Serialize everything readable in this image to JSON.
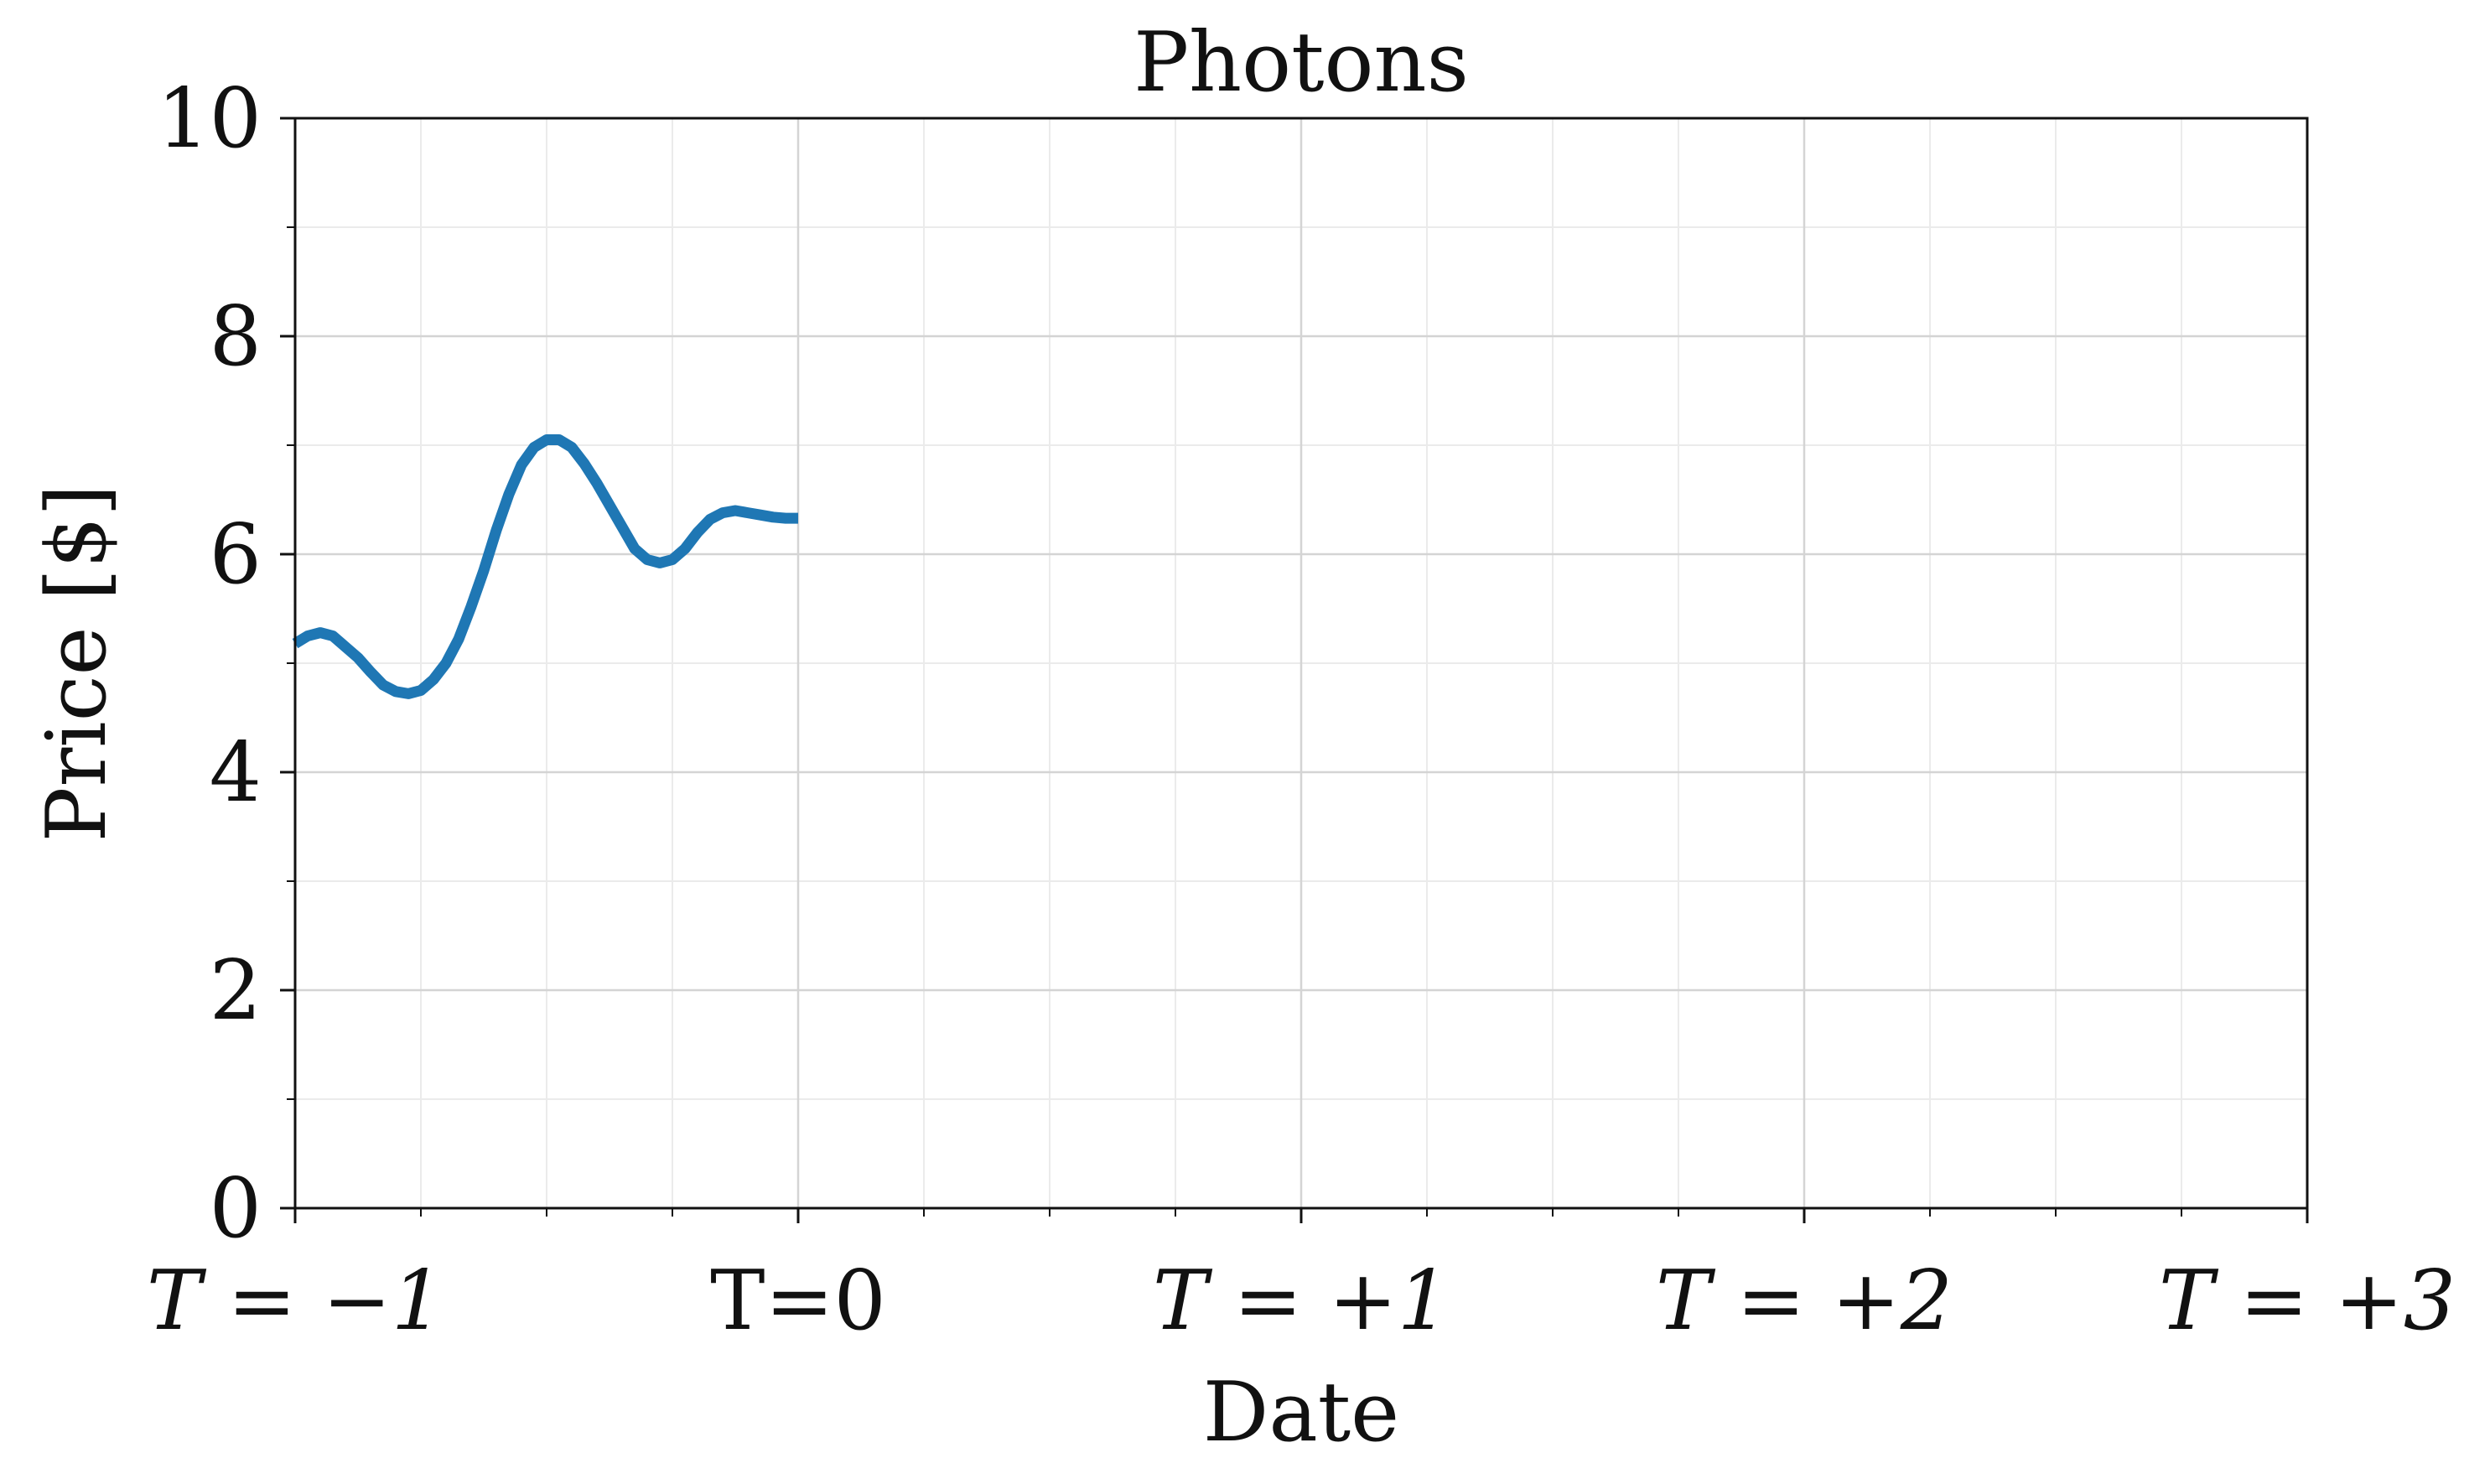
{
  "chart_data": {
    "type": "line",
    "title": "Photons",
    "xlabel": "Date",
    "ylabel": "Price [$]",
    "xlim": [
      -1,
      3
    ],
    "ylim": [
      0,
      10
    ],
    "x_ticks": [
      {
        "value": -1,
        "label": "T = −1",
        "italic": true
      },
      {
        "value": 0,
        "label": "T=0",
        "italic": false
      },
      {
        "value": 1,
        "label": "T = +1",
        "italic": true
      },
      {
        "value": 2,
        "label": "T = +2",
        "italic": true
      },
      {
        "value": 3,
        "label": "T = +3",
        "italic": true
      }
    ],
    "y_ticks": [
      0,
      2,
      4,
      6,
      8,
      10
    ],
    "x_minor_ticks": [
      -0.75,
      -0.5,
      -0.25,
      0.25,
      0.5,
      0.75,
      1.25,
      1.5,
      1.75,
      2.25,
      2.5,
      2.75
    ],
    "y_minor_ticks": [
      1,
      3,
      5,
      7,
      9
    ],
    "grid": true,
    "series": [
      {
        "color": "#1f77b4",
        "x": [
          -1.0,
          -0.975,
          -0.95,
          -0.925,
          -0.9,
          -0.875,
          -0.85,
          -0.825,
          -0.8,
          -0.775,
          -0.75,
          -0.725,
          -0.7,
          -0.675,
          -0.65,
          -0.625,
          -0.6,
          -0.575,
          -0.55,
          -0.525,
          -0.5,
          -0.475,
          -0.45,
          -0.425,
          -0.4,
          -0.375,
          -0.35,
          -0.325,
          -0.3,
          -0.275,
          -0.25,
          -0.225,
          -0.2,
          -0.175,
          -0.15,
          -0.125,
          -0.1,
          -0.075,
          -0.05,
          -0.025,
          0.0
        ],
        "values": [
          5.18,
          5.25,
          5.28,
          5.25,
          5.15,
          5.05,
          4.92,
          4.8,
          4.74,
          4.72,
          4.75,
          4.85,
          5.0,
          5.22,
          5.52,
          5.85,
          6.22,
          6.55,
          6.82,
          6.98,
          7.05,
          7.05,
          6.98,
          6.83,
          6.65,
          6.45,
          6.25,
          6.05,
          5.95,
          5.92,
          5.95,
          6.05,
          6.2,
          6.32,
          6.38,
          6.4,
          6.38,
          6.36,
          6.34,
          6.33,
          6.33
        ]
      }
    ]
  }
}
